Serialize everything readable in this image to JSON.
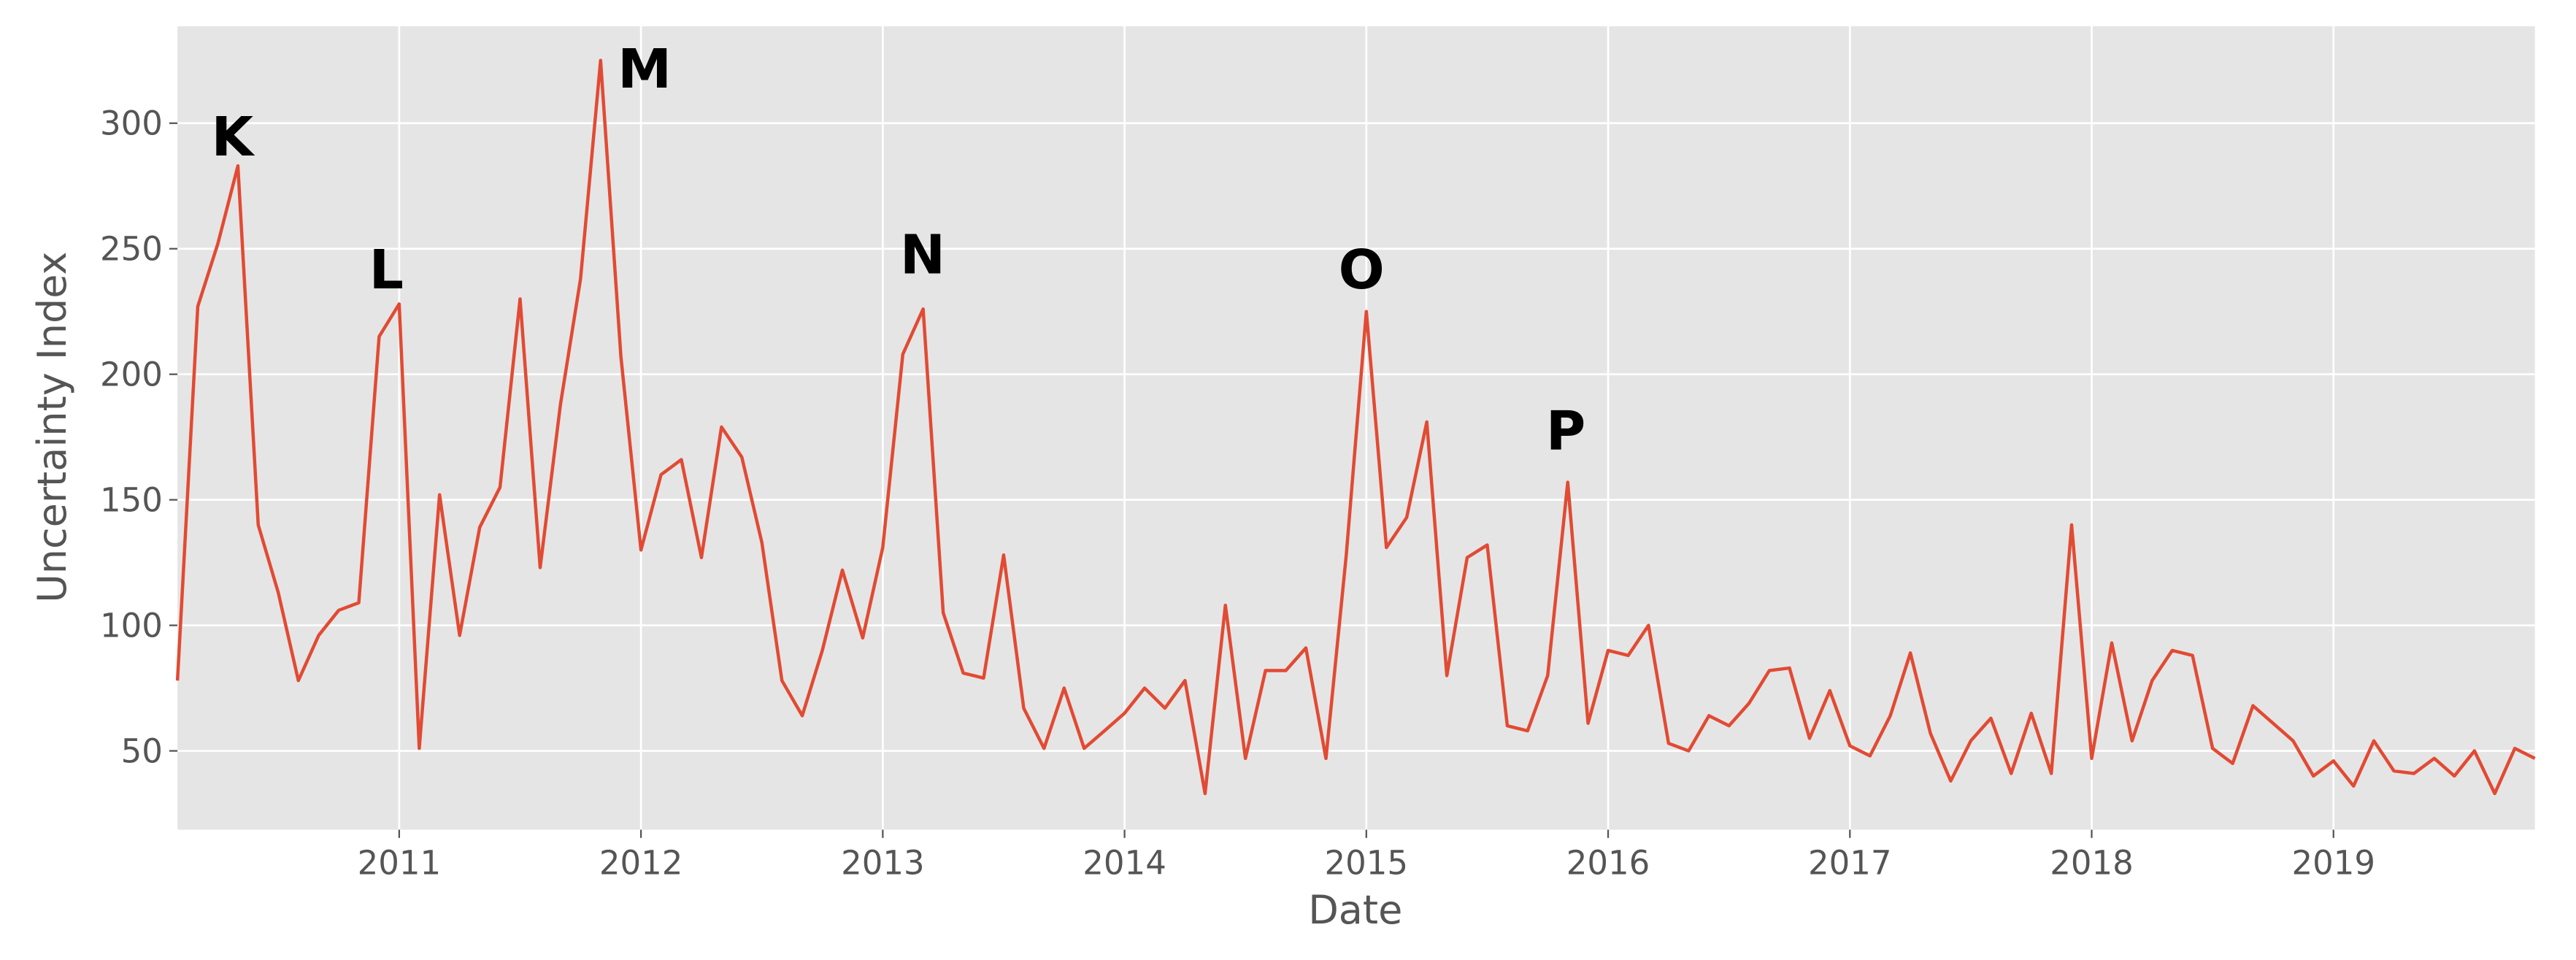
{
  "chart_data": {
    "type": "line",
    "xlabel": "Date",
    "ylabel": "Uncertainty Index",
    "x": [
      2010.083,
      2010.167,
      2010.25,
      2010.333,
      2010.417,
      2010.5,
      2010.583,
      2010.667,
      2010.75,
      2010.833,
      2010.917,
      2011,
      2011.083,
      2011.167,
      2011.25,
      2011.333,
      2011.417,
      2011.5,
      2011.583,
      2011.667,
      2011.75,
      2011.833,
      2011.917,
      2012,
      2012.083,
      2012.167,
      2012.25,
      2012.333,
      2012.417,
      2012.5,
      2012.583,
      2012.667,
      2012.75,
      2012.833,
      2012.917,
      2013,
      2013.083,
      2013.167,
      2013.25,
      2013.333,
      2013.417,
      2013.5,
      2013.583,
      2013.667,
      2013.75,
      2013.833,
      2013.917,
      2014,
      2014.083,
      2014.167,
      2014.25,
      2014.333,
      2014.417,
      2014.5,
      2014.583,
      2014.667,
      2014.75,
      2014.833,
      2014.917,
      2015,
      2015.083,
      2015.167,
      2015.25,
      2015.333,
      2015.417,
      2015.5,
      2015.583,
      2015.667,
      2015.75,
      2015.833,
      2015.917,
      2016,
      2016.083,
      2016.167,
      2016.25,
      2016.333,
      2016.417,
      2016.5,
      2016.583,
      2016.667,
      2016.75,
      2016.833,
      2016.917,
      2017,
      2017.083,
      2017.167,
      2017.25,
      2017.333,
      2017.417,
      2017.5,
      2017.583,
      2017.667,
      2017.75,
      2017.833,
      2017.917,
      2018,
      2018.083,
      2018.167,
      2018.25,
      2018.333,
      2018.417,
      2018.5,
      2018.583,
      2018.667,
      2018.75,
      2018.833,
      2018.917,
      2019,
      2019.083,
      2019.167,
      2019.25,
      2019.333,
      2019.417,
      2019.5,
      2019.583,
      2019.667,
      2019.75,
      2019.833
    ],
    "series": [
      {
        "name": "Uncertainty Index",
        "color": "#e24a33",
        "values": [
          78,
          227,
          252,
          283,
          140,
          113,
          78,
          96,
          106,
          109,
          215,
          228,
          51,
          152,
          96,
          139,
          155,
          230,
          123,
          188,
          238,
          325,
          207,
          130,
          160,
          166,
          127,
          179,
          167,
          133,
          78,
          64,
          90,
          122,
          95,
          131,
          208,
          226,
          105,
          81,
          79,
          128,
          67,
          51,
          75,
          51,
          58,
          65,
          75,
          67,
          78,
          33,
          108,
          47,
          82,
          82,
          91,
          47,
          128,
          225,
          131,
          143,
          181,
          80,
          127,
          132,
          60,
          58,
          80,
          157,
          61,
          90,
          88,
          100,
          53,
          50,
          64,
          60,
          69,
          82,
          83,
          55,
          74,
          52,
          48,
          64,
          89,
          57,
          38,
          54,
          63,
          41,
          65,
          41,
          140,
          47,
          93,
          54,
          78,
          90,
          88,
          51,
          45,
          68,
          61,
          54,
          40,
          46,
          36,
          54,
          42,
          41,
          47,
          40,
          50,
          33,
          51,
          47
        ]
      }
    ],
    "xlim": [
      2010.083,
      2019.833
    ],
    "ylim": [
      18.6,
      338.6
    ],
    "xticks": [
      2011,
      2012,
      2013,
      2014,
      2015,
      2016,
      2017,
      2018,
      2019
    ],
    "yticks": [
      50,
      100,
      150,
      200,
      250,
      300
    ],
    "grid": true,
    "annotations": [
      {
        "text": "K",
        "x": 2010.31,
        "y": 295
      },
      {
        "text": "L",
        "x": 2010.947,
        "y": 242
      },
      {
        "text": "M",
        "x": 2012.015,
        "y": 322
      },
      {
        "text": "N",
        "x": 2013.165,
        "y": 248
      },
      {
        "text": "O",
        "x": 2014.98,
        "y": 242
      },
      {
        "text": "P",
        "x": 2015.825,
        "y": 178
      }
    ]
  }
}
